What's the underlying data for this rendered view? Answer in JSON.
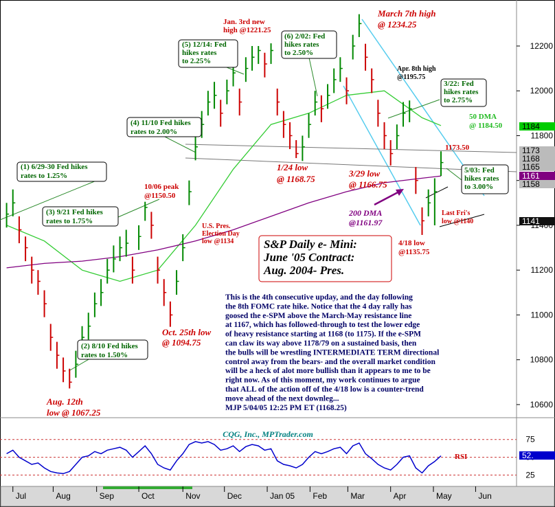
{
  "chart_data": {
    "type": "ohlc",
    "xlim": [
      -0.5,
      81
    ],
    "ylim": [
      10566,
      12390
    ],
    "yticks": [
      10600,
      10800,
      11000,
      11200,
      11400,
      11600,
      11800,
      12000,
      12200
    ],
    "xticks": [
      {
        "value": 1,
        "label": "Jul"
      },
      {
        "value": 7.4,
        "label": "Aug"
      },
      {
        "value": 14.3,
        "label": "Sep"
      },
      {
        "value": 21,
        "label": "Oct"
      },
      {
        "value": 28,
        "label": "Nov"
      },
      {
        "value": 34.6,
        "label": "Dec"
      },
      {
        "value": 41.4,
        "label": "Jan 05"
      },
      {
        "value": 48.2,
        "label": "Feb"
      },
      {
        "value": 54.2,
        "label": "Mar"
      },
      {
        "value": 61,
        "label": "Apr"
      },
      {
        "value": 67.8,
        "label": "May"
      },
      {
        "value": 74.5,
        "label": "Jun"
      }
    ],
    "ohlc": {
      "up_color": "#008800",
      "down_color": "#cc0000",
      "high": [
        11500,
        11560,
        11440,
        11350,
        11260,
        11200,
        11110,
        10960,
        10880,
        10810,
        10760,
        10840,
        10950,
        11010,
        11100,
        11160,
        11250,
        11310,
        11350,
        11380,
        11260,
        11400,
        11505,
        11460,
        11260,
        11160,
        11060,
        11200,
        11360,
        11600,
        11800,
        11910,
        12000,
        12040,
        11960,
        12050,
        12130,
        12010,
        12150,
        12200,
        12200,
        12170,
        12212,
        12010,
        11910,
        11860,
        11780,
        11800,
        11900,
        12000,
        11980,
        12030,
        12100,
        12150,
        12060,
        12250,
        12342,
        12210,
        12100,
        11960,
        11860,
        11780,
        11850,
        11950,
        11957,
        11660,
        11480,
        11560,
        11610,
        11730
      ],
      "low": [
        11390,
        11440,
        11320,
        11240,
        11140,
        11090,
        10990,
        10840,
        10760,
        10700,
        10672,
        10720,
        10840,
        10890,
        10990,
        11040,
        11140,
        11190,
        11240,
        11260,
        11140,
        11290,
        11420,
        11340,
        11140,
        11040,
        10947,
        11090,
        11240,
        11490,
        11690,
        11790,
        11890,
        11920,
        11840,
        11940,
        12020,
        11890,
        12040,
        12090,
        12120,
        12060,
        12120,
        11890,
        11790,
        11740,
        11700,
        11687,
        11790,
        11890,
        11860,
        11920,
        11990,
        12040,
        11940,
        12140,
        12240,
        12090,
        11990,
        11840,
        11740,
        11667,
        11740,
        11840,
        11860,
        11540,
        11357,
        11440,
        11400,
        11620
      ],
      "close": [
        11450,
        11500,
        11380,
        11300,
        11200,
        11150,
        11050,
        10900,
        10820,
        10750,
        10700,
        10780,
        10900,
        10950,
        11050,
        11100,
        11200,
        11250,
        11300,
        11320,
        11200,
        11350,
        11480,
        11400,
        11200,
        11100,
        11000,
        11150,
        11300,
        11550,
        11750,
        11850,
        11950,
        11980,
        11900,
        12000,
        12080,
        11950,
        12100,
        12150,
        12180,
        12120,
        12180,
        11950,
        11850,
        11800,
        11720,
        11750,
        11850,
        11950,
        11920,
        11980,
        12050,
        12100,
        12000,
        12200,
        12300,
        12150,
        12050,
        11900,
        11800,
        11720,
        11800,
        11900,
        11920,
        11600,
        11420,
        11500,
        11550,
        11680
      ]
    },
    "moving_averages": [
      {
        "color": "#33cc33",
        "x": [
          0,
          6,
          12,
          18,
          24,
          30,
          36,
          42,
          48,
          54,
          60,
          66,
          69
        ],
        "values": [
          11400,
          11330,
          11200,
          11150,
          11200,
          11400,
          11650,
          11850,
          11900,
          11980,
          12000,
          11880,
          11845
        ]
      },
      {
        "color": "#800080",
        "x": [
          0,
          6,
          12,
          18,
          24,
          30,
          36,
          42,
          48,
          54,
          60,
          66,
          69
        ],
        "values": [
          11210,
          11230,
          11240,
          11260,
          11290,
          11330,
          11380,
          11440,
          11500,
          11550,
          11590,
          11610,
          11620
        ]
      }
    ],
    "rsi": {
      "label": "RSI",
      "color": "#0000cc",
      "ylim": [
        10,
        96
      ],
      "yticks": [
        75,
        50,
        25
      ],
      "values": [
        55,
        60,
        50,
        45,
        40,
        42,
        35,
        30,
        28,
        27,
        30,
        40,
        50,
        52,
        58,
        55,
        60,
        62,
        64,
        60,
        50,
        58,
        66,
        55,
        40,
        35,
        32,
        45,
        55,
        68,
        72,
        70,
        72,
        68,
        60,
        62,
        66,
        58,
        65,
        68,
        66,
        60,
        62,
        45,
        40,
        38,
        35,
        40,
        50,
        58,
        55,
        58,
        62,
        64,
        55,
        66,
        70,
        55,
        48,
        40,
        35,
        32,
        40,
        50,
        52,
        35,
        28,
        38,
        44,
        52
      ]
    },
    "right_labels": [
      {
        "text": "1184",
        "color": "#00cc00"
      },
      {
        "text": "1173",
        "color": "#bbbbbb"
      },
      {
        "text": "1168",
        "color": "#bbbbbb"
      },
      {
        "text": "1165",
        "color": "#bbbbbb"
      },
      {
        "text": "1161",
        "color": "#800080"
      },
      {
        "text": "1158",
        "color": "#bbbbbb"
      },
      {
        "text": "1141",
        "color": "#111111"
      },
      {
        "text": "52.",
        "color": "#0000cc"
      }
    ],
    "annotations": [
      {
        "lines": [
          "Jan. 3rd new",
          "high @1221.25"
        ]
      },
      {
        "lines": [
          "March 7th high",
          "@ 1234.25"
        ]
      },
      {
        "lines": [
          "(5) 12/14: Fed",
          "hikes rates",
          "to 2.25%"
        ]
      },
      {
        "lines": [
          "(6) 2/02: Fed",
          "hikes rates",
          "to 2.50%"
        ]
      },
      {
        "lines": [
          "Apr. 8th high",
          "@1195.75"
        ]
      },
      {
        "lines": [
          "3/22: Fed",
          "hikes rates",
          "to 2.75%"
        ]
      },
      {
        "lines": [
          "50 DMA",
          "@ 1184.50"
        ]
      },
      {
        "lines": [
          "(4) 11/10 Fed hikes",
          "rates to 2.00%"
        ]
      },
      {
        "lines": [
          "1173.50"
        ]
      },
      {
        "lines": [
          "(1) 6/29-30 Fed hikes",
          "rates to 1.25%"
        ]
      },
      {
        "lines": [
          "1/24 low",
          "@ 1168.75"
        ]
      },
      {
        "lines": [
          "3/29 low",
          "@ 1166.75"
        ]
      },
      {
        "lines": [
          "5/03: Fed",
          "hikes rates",
          "to 3.00%"
        ]
      },
      {
        "lines": [
          "10/06 peak",
          "@1150.50"
        ]
      },
      {
        "lines": [
          "(3) 9/21 Fed hikes",
          "rates to 1.75%"
        ]
      },
      {
        "lines": [
          "U.S. Pres.",
          "Election Day",
          "low @1134"
        ]
      },
      {
        "lines": [
          "200 DMA",
          "@1161.97"
        ]
      },
      {
        "lines": [
          "Last Fri's",
          "low @1140"
        ]
      },
      {
        "lines": [
          "4/18 low",
          "@1135.75"
        ]
      },
      {
        "lines": [
          "S&P Daily e- Mini:",
          "June '05 Contract:",
          "Aug. 2004- Pres."
        ]
      },
      {
        "lines": [
          "Oct. 25th low",
          "@ 1094.75"
        ]
      },
      {
        "lines": [
          "(2) 8/10 Fed hikes",
          "rates to 1.50%"
        ]
      },
      {
        "lines": [
          "Aug. 12th",
          "low @ 1067.25"
        ]
      }
    ],
    "commentary": [
      "This is the 4th consecutive upday, and the day following",
      "the 8th FOMC rate hike. Notice that the 4 day rally has",
      "goosed the e-SPM above the March-May resistance line",
      "at 1167, which has followed-through to test the lower edge",
      "of heavy resistance starting at 1168 (to 1175). If the e-SPM",
      "can claw its way above 1178/79 on a sustained basis, then",
      "the bulls will be wrestling INTERMEDIATE TERM directional",
      "control away from the bears- and the overall market condition",
      "will be a heck of alot more bullish than it appears to me to be",
      "right now. As of this moment, my work continues to argue",
      "that ALL of the action off of the 4/18 low is a counter-trend",
      "move ahead of the next downleg...",
      "MJP 5/04/05 12:25 PM ET (1168.25)"
    ],
    "credit": "CQG, Inc., MPTrader.com"
  }
}
